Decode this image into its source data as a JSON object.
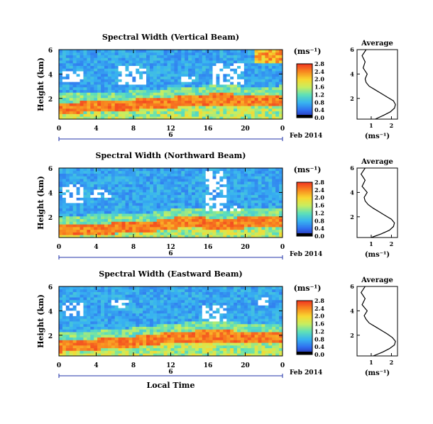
{
  "figure": {
    "x_axis_label": "Local Time",
    "date_label": "Feb 2014",
    "date_tick_label": "6",
    "colorbar_unit": "(ms⁻¹)",
    "profile_title": "Average",
    "profile_xlabel": "(ms⁻¹)",
    "colormap": [
      "#2a2aa8",
      "#2f6ff0",
      "#38b4f0",
      "#5ee0b8",
      "#c8ee60",
      "#f8d830",
      "#f88a20",
      "#f23820"
    ],
    "missing_color": "#ffffff"
  },
  "chart_data": [
    {
      "type": "heatmap",
      "title": "Spectral Width (Vertical Beam)",
      "ylabel": "Height (km)",
      "x_ticks": [
        "0",
        "4",
        "8",
        "12",
        "16",
        "20",
        "0"
      ],
      "y_ticks": [
        "2",
        "4",
        "6"
      ],
      "xlim": [
        0,
        24
      ],
      "ylim": [
        0.3,
        6
      ],
      "colorbar_ticks": [
        "0.0",
        "0.4",
        "0.8",
        "1.2",
        "1.6",
        "2.0",
        "2.4",
        "2.8"
      ],
      "colorbar_range": [
        0,
        2.8
      ],
      "high_band_top_km": [
        1.7,
        1.7,
        1.8,
        1.9,
        1.9,
        2.0,
        2.1,
        2.2,
        2.3,
        2.4,
        2.4,
        2.3,
        2.2,
        2.4
      ],
      "missing_regions_km": [
        [
          0.5,
          2.5,
          3.3,
          4.3
        ],
        [
          6.5,
          9.5,
          3.2,
          4.6
        ],
        [
          13.0,
          15.0,
          3.4,
          3.9
        ],
        [
          16.5,
          20.0,
          3.2,
          4.9
        ]
      ],
      "profile": {
        "title": "Average",
        "xlabel": "(ms⁻¹)",
        "x_ticks": [
          "1",
          "2"
        ],
        "xlim": [
          0.3,
          2.3
        ],
        "y_ticks": [
          "2",
          "4",
          "6"
        ],
        "ylim": [
          0.3,
          6
        ],
        "height_km": [
          0.3,
          0.6,
          0.9,
          1.2,
          1.5,
          1.8,
          2.1,
          2.4,
          2.7,
          3.0,
          3.3,
          3.6,
          4.0,
          4.5,
          5.0,
          5.5,
          6.0
        ],
        "width_ms": [
          1.2,
          1.6,
          1.95,
          2.15,
          2.2,
          2.1,
          1.8,
          1.5,
          1.2,
          0.9,
          0.75,
          0.7,
          0.8,
          0.6,
          0.7,
          0.55,
          0.75
        ]
      }
    },
    {
      "type": "heatmap",
      "title": "Spectral Width (Northward Beam)",
      "ylabel": "Height (km)",
      "x_ticks": [
        "0",
        "4",
        "8",
        "12",
        "16",
        "20",
        "0"
      ],
      "y_ticks": [
        "2",
        "4",
        "6"
      ],
      "xlim": [
        0,
        24
      ],
      "ylim": [
        0.3,
        6
      ],
      "colorbar_ticks": [
        "0.0",
        "0.4",
        "0.8",
        "1.2",
        "1.6",
        "2.0",
        "2.4",
        "2.8"
      ],
      "colorbar_range": [
        0,
        2.8
      ],
      "high_band_top_km": [
        1.3,
        1.4,
        1.5,
        1.5,
        1.6,
        1.6,
        1.8,
        2.0,
        2.0,
        1.9,
        1.9,
        2.0,
        2.0,
        2.1
      ],
      "missing_regions_km": [
        [
          0.3,
          2.5,
          3.2,
          4.6
        ],
        [
          3.5,
          5.5,
          3.6,
          4.3
        ],
        [
          15.7,
          18.0,
          2.4,
          5.8
        ],
        [
          18.0,
          19.5,
          2.4,
          3.0
        ]
      ],
      "profile": {
        "title": "Average",
        "xlabel": "(ms⁻¹)",
        "x_ticks": [
          "1",
          "2"
        ],
        "xlim": [
          0.3,
          2.3
        ],
        "y_ticks": [
          "2",
          "4",
          "6"
        ],
        "ylim": [
          0.3,
          6
        ],
        "height_km": [
          0.3,
          0.6,
          0.9,
          1.2,
          1.5,
          1.8,
          2.1,
          2.4,
          2.7,
          3.0,
          3.3,
          3.6,
          4.0,
          4.5,
          5.0,
          5.5,
          6.0
        ],
        "width_ms": [
          1.0,
          1.5,
          1.9,
          2.1,
          2.15,
          2.0,
          1.7,
          1.4,
          1.1,
          0.85,
          0.7,
          0.65,
          0.8,
          0.55,
          0.7,
          0.5,
          0.7
        ]
      }
    },
    {
      "type": "heatmap",
      "title": "Spectral Width (Eastward Beam)",
      "ylabel": "Height (km)",
      "x_ticks": [
        "0",
        "4",
        "8",
        "12",
        "16",
        "20",
        "0"
      ],
      "y_ticks": [
        "2",
        "4",
        "6"
      ],
      "xlim": [
        0,
        24
      ],
      "ylim": [
        0.3,
        6
      ],
      "colorbar_ticks": [
        "0.0",
        "0.4",
        "0.8",
        "1.2",
        "1.6",
        "2.0",
        "2.4",
        "2.8"
      ],
      "colorbar_range": [
        0,
        2.8
      ],
      "high_band_top_km": [
        1.5,
        1.6,
        1.7,
        1.8,
        1.9,
        2.0,
        2.2,
        2.3,
        2.4,
        2.4,
        2.4,
        2.3,
        2.2,
        2.3
      ],
      "missing_regions_km": [
        [
          0.5,
          2.5,
          3.5,
          4.6
        ],
        [
          5.5,
          7.5,
          4.2,
          4.8
        ],
        [
          15.5,
          18.0,
          3.2,
          4.5
        ],
        [
          21.5,
          22.5,
          4.5,
          5.2
        ]
      ],
      "profile": {
        "title": "Average",
        "xlabel": "(ms⁻¹)",
        "x_ticks": [
          "1",
          "2"
        ],
        "xlim": [
          0.3,
          2.3
        ],
        "y_ticks": [
          "2",
          "4",
          "6"
        ],
        "ylim": [
          0.3,
          6
        ],
        "height_km": [
          0.3,
          0.6,
          0.9,
          1.2,
          1.5,
          1.8,
          2.1,
          2.4,
          2.7,
          3.0,
          3.3,
          3.6,
          4.0,
          4.5,
          5.0,
          5.5,
          6.0
        ],
        "width_ms": [
          1.1,
          1.55,
          1.9,
          2.15,
          2.2,
          2.05,
          1.8,
          1.5,
          1.2,
          0.9,
          0.75,
          0.65,
          0.8,
          0.55,
          0.7,
          0.5,
          0.7
        ]
      }
    }
  ]
}
